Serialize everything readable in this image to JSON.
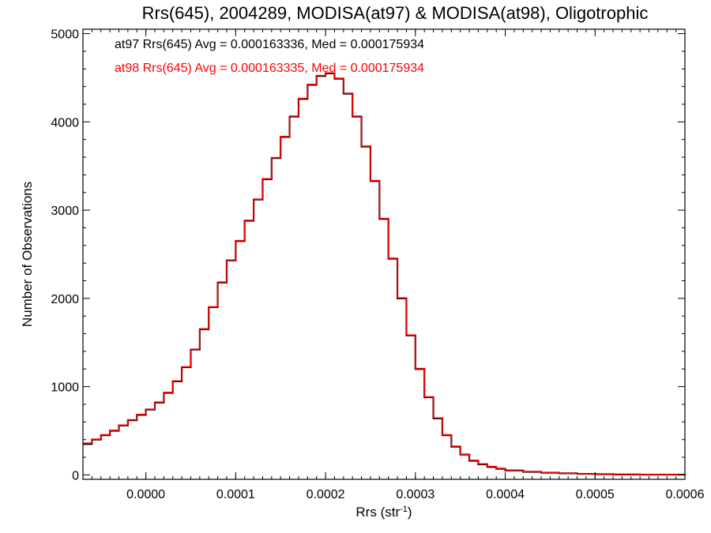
{
  "chart_data": {
    "type": "line",
    "title": "Rrs(645), 2004289, MODISA(at97) & MODISA(at98), Oligotrophic",
    "xlabel_main": "Rrs (str",
    "xlabel_sup": "-1",
    "xlabel_close": ")",
    "ylabel": "Number of Observations",
    "xlim": [
      -7e-05,
      0.0006
    ],
    "ylim": [
      -50,
      5050
    ],
    "x_ticks": [
      0.0,
      0.0001,
      0.0002,
      0.0003,
      0.0004,
      0.0005,
      0.0006
    ],
    "x_tick_labels": [
      "0.0000",
      "0.0001",
      "0.0002",
      "0.0003",
      "0.0004",
      "0.0005",
      "0.0006"
    ],
    "y_ticks": [
      0,
      1000,
      2000,
      3000,
      4000,
      5000
    ],
    "y_tick_labels": [
      "0",
      "1000",
      "2000",
      "3000",
      "4000",
      "5000"
    ],
    "grid": false,
    "legend_placement": "top-left",
    "step_style": "histogram",
    "series": [
      {
        "name": "at97",
        "color": "#000000",
        "legend_text": "at97 Rrs(645) Avg = 0.000163336, Med = 0.000175934",
        "x": [
          -7e-05,
          -6e-05,
          -5e-05,
          -4e-05,
          -3e-05,
          -2e-05,
          -1e-05,
          0.0,
          1e-05,
          2e-05,
          3e-05,
          4e-05,
          5e-05,
          6e-05,
          7e-05,
          8e-05,
          9e-05,
          0.0001,
          0.00011,
          0.00012,
          0.00013,
          0.00014,
          0.00015,
          0.00016,
          0.00017,
          0.00018,
          0.00019,
          0.0002,
          0.00021,
          0.00022,
          0.00023,
          0.00024,
          0.00025,
          0.00026,
          0.00027,
          0.00028,
          0.00029,
          0.0003,
          0.00031,
          0.00032,
          0.00033,
          0.00034,
          0.00035,
          0.00036,
          0.00037,
          0.00038,
          0.00039,
          0.0004,
          0.00042,
          0.00044,
          0.00046,
          0.00048,
          0.0005,
          0.00052,
          0.00055,
          0.0006
        ],
        "values": [
          350,
          400,
          450,
          500,
          560,
          620,
          680,
          740,
          820,
          930,
          1060,
          1220,
          1420,
          1650,
          1900,
          2180,
          2430,
          2650,
          2880,
          3120,
          3350,
          3590,
          3830,
          4060,
          4260,
          4420,
          4520,
          4550,
          4490,
          4320,
          4060,
          3720,
          3330,
          2900,
          2450,
          2000,
          1580,
          1200,
          880,
          640,
          450,
          320,
          230,
          160,
          120,
          90,
          70,
          50,
          35,
          25,
          18,
          12,
          8,
          5,
          3,
          1
        ]
      },
      {
        "name": "at98",
        "color": "#ff0000",
        "legend_text": "at98 Rrs(645) Avg = 0.000163335, Med = 0.000175934",
        "x": [
          -7e-05,
          -6e-05,
          -5e-05,
          -4e-05,
          -3e-05,
          -2e-05,
          -1e-05,
          0.0,
          1e-05,
          2e-05,
          3e-05,
          4e-05,
          5e-05,
          6e-05,
          7e-05,
          8e-05,
          9e-05,
          0.0001,
          0.00011,
          0.00012,
          0.00013,
          0.00014,
          0.00015,
          0.00016,
          0.00017,
          0.00018,
          0.00019,
          0.0002,
          0.00021,
          0.00022,
          0.00023,
          0.00024,
          0.00025,
          0.00026,
          0.00027,
          0.00028,
          0.00029,
          0.0003,
          0.00031,
          0.00032,
          0.00033,
          0.00034,
          0.00035,
          0.00036,
          0.00037,
          0.00038,
          0.00039,
          0.0004,
          0.00042,
          0.00044,
          0.00046,
          0.00048,
          0.0005,
          0.00052,
          0.00055,
          0.0006
        ],
        "values": [
          360,
          405,
          455,
          505,
          565,
          625,
          685,
          745,
          825,
          935,
          1065,
          1225,
          1425,
          1655,
          1905,
          2185,
          2435,
          2655,
          2885,
          3125,
          3355,
          3595,
          3835,
          4065,
          4265,
          4425,
          4525,
          4555,
          4495,
          4325,
          4065,
          3725,
          3335,
          2905,
          2455,
          2005,
          1585,
          1205,
          885,
          645,
          455,
          325,
          235,
          165,
          125,
          95,
          75,
          55,
          38,
          27,
          19,
          13,
          9,
          6,
          3,
          1
        ]
      }
    ]
  }
}
